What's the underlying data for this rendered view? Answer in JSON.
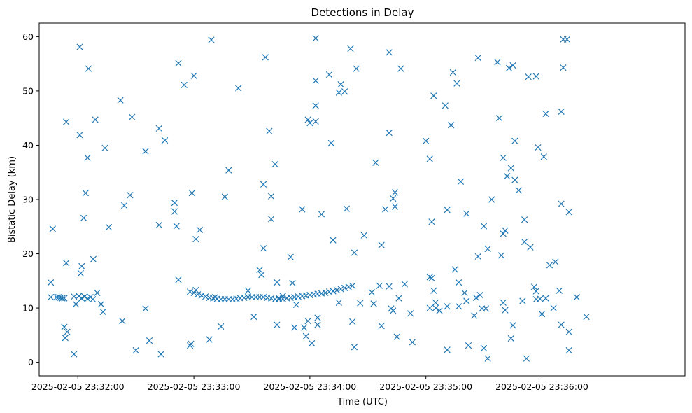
{
  "chart_data": {
    "type": "scatter",
    "title": "Detections in Delay",
    "xlabel": "Time (UTC)",
    "ylabel": "Bistatic Delay (km)",
    "marker": "x",
    "series_color": "#1f77b4",
    "x_tick_labels": [
      "2025-02-05 23:32:00",
      "2025-02-05 23:33:00",
      "2025-02-05 23:34:00",
      "2025-02-05 23:35:00",
      "2025-02-05 23:36:00"
    ],
    "x_tick_values": [
      0,
      60,
      120,
      180,
      240
    ],
    "xlim": [
      -20,
      314
    ],
    "y_ticks": [
      0,
      10,
      20,
      30,
      40,
      50,
      60
    ],
    "ylim": [
      -2.5,
      62.5
    ],
    "grid": false,
    "track_points": {
      "x": [
        -11,
        -10,
        -9,
        -8,
        -7,
        0.5,
        2,
        3.5,
        5,
        6.5,
        7.8,
        58,
        60,
        62,
        64,
        66,
        68,
        70,
        72,
        74,
        76,
        78,
        80,
        82,
        84,
        86,
        88,
        90,
        92,
        94,
        96,
        98,
        100,
        102,
        104,
        106,
        108,
        110,
        112,
        114,
        116,
        118,
        120,
        122,
        124,
        126,
        128,
        130,
        132,
        134,
        136,
        138,
        140,
        142
      ],
      "y": [
        12.0,
        12.0,
        11.9,
        11.8,
        11.8,
        12.2,
        11.8,
        12.1,
        11.7,
        12.0,
        11.6,
        13.0,
        12.8,
        12.5,
        12.3,
        12.1,
        11.9,
        11.8,
        11.7,
        11.6,
        11.6,
        11.6,
        11.6,
        11.7,
        11.8,
        11.9,
        12.0,
        12.0,
        12.0,
        12.0,
        12.0,
        11.9,
        11.8,
        11.6,
        11.6,
        11.7,
        11.8,
        11.9,
        12.0,
        12.1,
        12.2,
        12.3,
        12.4,
        12.5,
        12.6,
        12.7,
        12.8,
        13.0,
        13.1,
        13.3,
        13.5,
        13.7,
        13.9,
        14.1
      ]
    },
    "noise_points": [
      [
        -14,
        14.7
      ],
      [
        -13,
        24.6
      ],
      [
        -14,
        12.0
      ],
      [
        -7,
        6.5
      ],
      [
        -6.5,
        4.5
      ],
      [
        -6,
        18.3
      ],
      [
        -5.5,
        5.6
      ],
      [
        -6,
        44.3
      ],
      [
        -2,
        1.5
      ],
      [
        -1,
        10.7
      ],
      [
        -2,
        12.1
      ],
      [
        1,
        58.1
      ],
      [
        1,
        41.9
      ],
      [
        1.5,
        16.4
      ],
      [
        2,
        17.7
      ],
      [
        3,
        26.6
      ],
      [
        4,
        31.2
      ],
      [
        5,
        37.7
      ],
      [
        5.5,
        54.1
      ],
      [
        8,
        19.0
      ],
      [
        9,
        44.7
      ],
      [
        10,
        12.8
      ],
      [
        12,
        10.7
      ],
      [
        13,
        9.3
      ],
      [
        14,
        39.5
      ],
      [
        16,
        24.9
      ],
      [
        22,
        48.3
      ],
      [
        23,
        7.6
      ],
      [
        24,
        28.9
      ],
      [
        27,
        30.8
      ],
      [
        28,
        45.2
      ],
      [
        30,
        2.2
      ],
      [
        35,
        38.9
      ],
      [
        35,
        9.9
      ],
      [
        37,
        4.0
      ],
      [
        42,
        25.3
      ],
      [
        42,
        43.1
      ],
      [
        43,
        1.5
      ],
      [
        45,
        40.9
      ],
      [
        50,
        29.4
      ],
      [
        50,
        27.8
      ],
      [
        51,
        25.1
      ],
      [
        52,
        55.1
      ],
      [
        52,
        15.2
      ],
      [
        55,
        51.1
      ],
      [
        58,
        3.1
      ],
      [
        58.5,
        3.4
      ],
      [
        59,
        31.2
      ],
      [
        60,
        52.8
      ],
      [
        61,
        22.7
      ],
      [
        61,
        13.3
      ],
      [
        63,
        24.4
      ],
      [
        68,
        4.2
      ],
      [
        69,
        59.4
      ],
      [
        71,
        12.0
      ],
      [
        74,
        6.6
      ],
      [
        76,
        30.5
      ],
      [
        78,
        35.4
      ],
      [
        83,
        50.5
      ],
      [
        88,
        13.2
      ],
      [
        91,
        8.4
      ],
      [
        94,
        17.0
      ],
      [
        95,
        16.1
      ],
      [
        96,
        32.8
      ],
      [
        96,
        21.0
      ],
      [
        97,
        56.2
      ],
      [
        99,
        42.6
      ],
      [
        100,
        30.6
      ],
      [
        100,
        26.4
      ],
      [
        102,
        36.5
      ],
      [
        103,
        14.7
      ],
      [
        103,
        6.9
      ],
      [
        104,
        11.8
      ],
      [
        106,
        12.2
      ],
      [
        110,
        19.4
      ],
      [
        111,
        14.6
      ],
      [
        112,
        6.4
      ],
      [
        113,
        10.6
      ],
      [
        116,
        28.2
      ],
      [
        117,
        6.4
      ],
      [
        118,
        4.8
      ],
      [
        119,
        7.6
      ],
      [
        119,
        44.7
      ],
      [
        120,
        44.1
      ],
      [
        121,
        3.5
      ],
      [
        123,
        51.9
      ],
      [
        123,
        47.3
      ],
      [
        123,
        44.4
      ],
      [
        124,
        8.2
      ],
      [
        124,
        6.9
      ],
      [
        123,
        59.7
      ],
      [
        126,
        27.3
      ],
      [
        130,
        53.0
      ],
      [
        131,
        40.4
      ],
      [
        132,
        22.5
      ],
      [
        135,
        11.0
      ],
      [
        135,
        49.7
      ],
      [
        136,
        51.2
      ],
      [
        138,
        49.9
      ],
      [
        139,
        28.3
      ],
      [
        141,
        57.8
      ],
      [
        142,
        7.5
      ],
      [
        143,
        2.8
      ],
      [
        143,
        20.2
      ],
      [
        144,
        54.1
      ],
      [
        146,
        10.9
      ],
      [
        148,
        23.4
      ],
      [
        152,
        12.9
      ],
      [
        153,
        10.8
      ],
      [
        154,
        36.8
      ],
      [
        156,
        14.1
      ],
      [
        157,
        21.6
      ],
      [
        157,
        6.7
      ],
      [
        159,
        28.2
      ],
      [
        161,
        57.1
      ],
      [
        161,
        42.3
      ],
      [
        161,
        14.0
      ],
      [
        162,
        9.9
      ],
      [
        163,
        30.2
      ],
      [
        163,
        9.5
      ],
      [
        164,
        28.7
      ],
      [
        164,
        31.3
      ],
      [
        165,
        4.7
      ],
      [
        166,
        11.8
      ],
      [
        167,
        54.1
      ],
      [
        169,
        14.4
      ],
      [
        172,
        9.0
      ],
      [
        173,
        3.7
      ],
      [
        180,
        40.8
      ],
      [
        182,
        10.0
      ],
      [
        182,
        15.7
      ],
      [
        182,
        37.5
      ],
      [
        183,
        25.9
      ],
      [
        183,
        15.5
      ],
      [
        184,
        49.1
      ],
      [
        184,
        13.2
      ],
      [
        185,
        11.0
      ],
      [
        185,
        10.0
      ],
      [
        187,
        9.5
      ],
      [
        190,
        47.3
      ],
      [
        191,
        28.1
      ],
      [
        191,
        10.3
      ],
      [
        191,
        2.3
      ],
      [
        193,
        43.7
      ],
      [
        194,
        53.4
      ],
      [
        195,
        17.1
      ],
      [
        196,
        51.4
      ],
      [
        197,
        14.7
      ],
      [
        197,
        10.3
      ],
      [
        198,
        33.3
      ],
      [
        200,
        12.8
      ],
      [
        201,
        27.4
      ],
      [
        201,
        11.3
      ],
      [
        202,
        3.1
      ],
      [
        205,
        8.6
      ],
      [
        206,
        11.9
      ],
      [
        207,
        56.1
      ],
      [
        207,
        19.5
      ],
      [
        208,
        12.4
      ],
      [
        209,
        9.9
      ],
      [
        210,
        2.6
      ],
      [
        210,
        25.1
      ],
      [
        211,
        9.9
      ],
      [
        212,
        20.9
      ],
      [
        212,
        0.7
      ],
      [
        214,
        30.0
      ],
      [
        217,
        55.3
      ],
      [
        218,
        45.0
      ],
      [
        219,
        19.7
      ],
      [
        220,
        37.7
      ],
      [
        220,
        23.7
      ],
      [
        220,
        11.0
      ],
      [
        221,
        24.3
      ],
      [
        221,
        9.6
      ],
      [
        222,
        34.3
      ],
      [
        223,
        54.2
      ],
      [
        224,
        35.8
      ],
      [
        224,
        4.4
      ],
      [
        225,
        6.8
      ],
      [
        225,
        54.7
      ],
      [
        226,
        40.8
      ],
      [
        226,
        33.6
      ],
      [
        228,
        31.7
      ],
      [
        230,
        11.3
      ],
      [
        231,
        26.3
      ],
      [
        231,
        22.2
      ],
      [
        232,
        0.7
      ],
      [
        233,
        52.6
      ],
      [
        234,
        21.2
      ],
      [
        236,
        13.9
      ],
      [
        237,
        52.7
      ],
      [
        237,
        13.1
      ],
      [
        237,
        11.6
      ],
      [
        238,
        39.6
      ],
      [
        239,
        11.7
      ],
      [
        240,
        8.9
      ],
      [
        241,
        37.9
      ],
      [
        242,
        11.8
      ],
      [
        242,
        45.8
      ],
      [
        244,
        17.9
      ],
      [
        246,
        10.0
      ],
      [
        247,
        18.5
      ],
      [
        249,
        13.2
      ],
      [
        250,
        29.2
      ],
      [
        250,
        46.2
      ],
      [
        250,
        6.9
      ],
      [
        251,
        59.5
      ],
      [
        251,
        54.3
      ],
      [
        253,
        59.5
      ],
      [
        254,
        27.7
      ],
      [
        254,
        5.6
      ],
      [
        254,
        2.2
      ],
      [
        258,
        12.0
      ],
      [
        263,
        8.4
      ]
    ]
  }
}
